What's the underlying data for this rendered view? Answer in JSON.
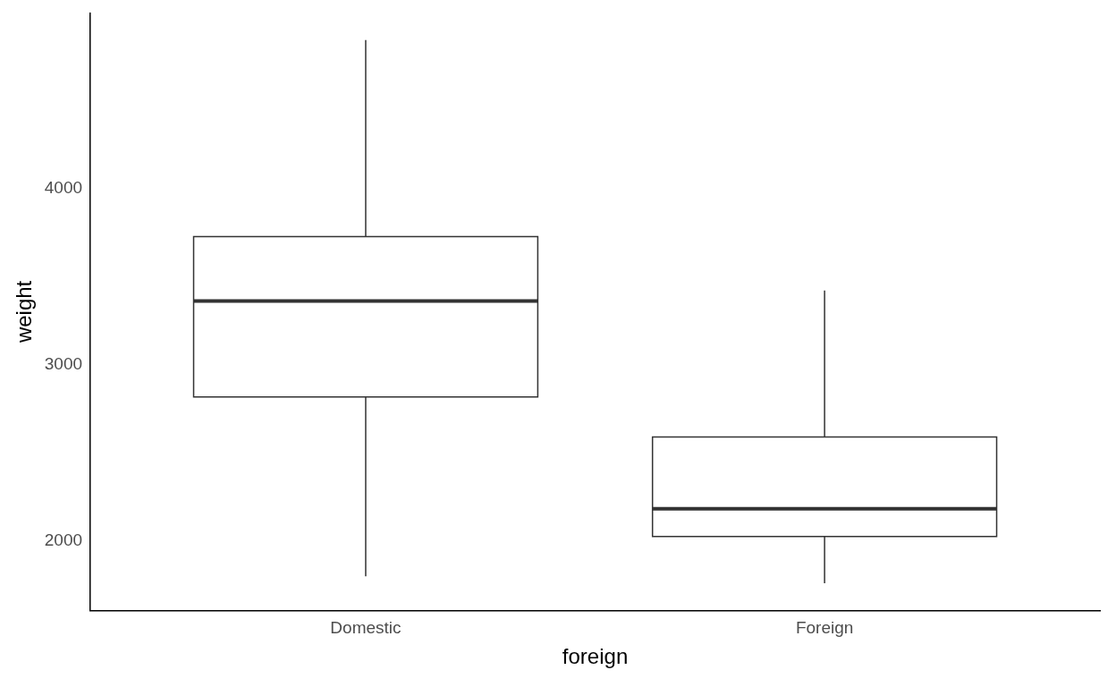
{
  "chart_data": {
    "type": "box",
    "xlabel": "foreign",
    "ylabel": "weight",
    "categories": [
      "Domestic",
      "Foreign"
    ],
    "boxes": [
      {
        "low": 1800,
        "q1": 2817,
        "median": 3360,
        "q3": 3726,
        "high": 4840
      },
      {
        "low": 1760,
        "q1": 2025,
        "median": 2183,
        "q3": 2589,
        "high": 3420
      }
    ],
    "ylim": [
      1606,
      4994
    ],
    "yticks": [
      2000,
      3000,
      4000
    ]
  }
}
